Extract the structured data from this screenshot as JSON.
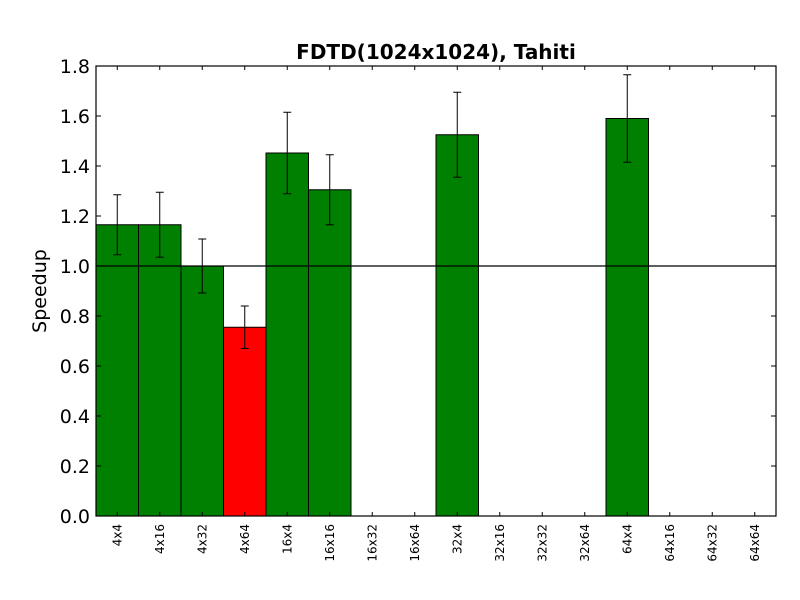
{
  "chart_data": {
    "type": "bar",
    "title": "FDTD(1024x1024), Tahiti",
    "xlabel": "",
    "ylabel": "Speedup",
    "ylim": [
      0,
      1.8
    ],
    "yticks": [
      "0.0",
      "0.2",
      "0.4",
      "0.6",
      "0.8",
      "1.0",
      "1.2",
      "1.4",
      "1.6",
      "1.8"
    ],
    "reference_line": 1.0,
    "categories": [
      "4x4",
      "4x16",
      "4x32",
      "4x64",
      "16x4",
      "16x16",
      "16x32",
      "16x64",
      "32x4",
      "32x16",
      "32x32",
      "32x64",
      "64x4",
      "64x16",
      "64x32",
      "64x64"
    ],
    "values": [
      1.165,
      1.165,
      1.0,
      0.755,
      1.452,
      1.305,
      null,
      null,
      1.525,
      null,
      null,
      null,
      1.59,
      null,
      null,
      null
    ],
    "errors": [
      0.12,
      0.13,
      0.108,
      0.085,
      0.163,
      0.14,
      null,
      null,
      0.17,
      null,
      null,
      null,
      0.175,
      null,
      null,
      null
    ],
    "colors": {
      "above": "#008000",
      "below": "#ff0000",
      "edge": "#000000"
    },
    "grid": false,
    "legend": "none"
  }
}
